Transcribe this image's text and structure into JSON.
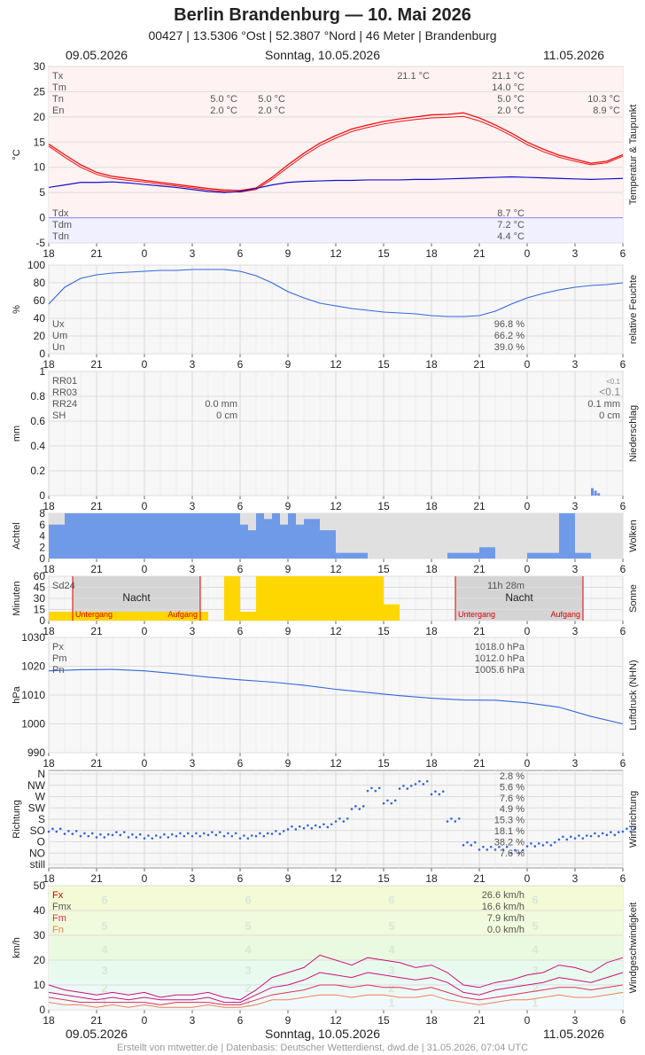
{
  "header": {
    "title": "Berlin Brandenburg  —  10. Mai 2026",
    "subtitle": "00427  |  13.5306 °Ost  |  52.3807 °Nord  |  46 Meter  |  Brandenburg"
  },
  "dates": {
    "left": "09.05.2026",
    "center": "Sonntag, 10.05.2026",
    "right": "11.05.2026"
  },
  "footer": "Erstellt von mtwetter.de | Datenbasis: Deutscher Wetterdienst, dwd.de | 31.05.2026, 07:04 UTC",
  "colors": {
    "temp": "#ee1111",
    "dew": "#1111cc",
    "humidity": "#3366dd",
    "cloud": "#6f9ae8",
    "sun": "#ffd700",
    "wind_max": "#cc1177",
    "wind_mean": "#dd3355",
    "wind_min": "#f08050",
    "night": "#cccccc"
  },
  "chart_data": [
    {
      "type": "line",
      "panel": "temperature",
      "ylabel": "°C",
      "side_label": "Temperatur & Taupunkt",
      "ylim": [
        -5,
        30
      ],
      "yticks": [
        -5,
        0,
        5,
        10,
        15,
        20,
        25,
        30
      ],
      "x_hours": [
        18,
        21,
        0,
        3,
        6,
        9,
        12,
        15,
        18,
        21,
        0,
        3,
        6
      ],
      "x": [
        18,
        19,
        20,
        21,
        22,
        23,
        24,
        25,
        26,
        27,
        28,
        29,
        30,
        31,
        32,
        33,
        34,
        35,
        36,
        37,
        38,
        39,
        40,
        41,
        42,
        43,
        44,
        45,
        46,
        47,
        48,
        49,
        50,
        51,
        52,
        53,
        54
      ],
      "series": [
        {
          "name": "Tx",
          "values": [
            14.6,
            12.5,
            10.5,
            9.0,
            8.2,
            7.8,
            7.4,
            7.0,
            6.6,
            6.2,
            5.8,
            5.5,
            5.4,
            5.9,
            8.0,
            10.5,
            12.8,
            14.8,
            16.3,
            17.6,
            18.4,
            19.1,
            19.6,
            20.0,
            20.4,
            20.5,
            20.8,
            19.8,
            18.4,
            16.8,
            15.0,
            13.6,
            12.4,
            11.6,
            10.8,
            11.2,
            12.5
          ]
        },
        {
          "name": "Tm",
          "values": [
            14.2,
            12.0,
            10.0,
            8.6,
            7.8,
            7.4,
            7.1,
            6.7,
            6.3,
            5.9,
            5.5,
            5.2,
            5.1,
            5.6,
            7.6,
            10.0,
            12.3,
            14.3,
            15.8,
            17.1,
            17.9,
            18.6,
            19.1,
            19.5,
            19.8,
            19.9,
            20.1,
            19.2,
            17.9,
            16.3,
            14.5,
            13.1,
            12.0,
            11.2,
            10.5,
            10.9,
            12.2
          ]
        },
        {
          "name": "Td",
          "values": [
            6.0,
            6.5,
            7.0,
            7.0,
            7.1,
            6.9,
            6.6,
            6.3,
            6.0,
            5.6,
            5.2,
            5.0,
            5.2,
            5.8,
            6.5,
            7.0,
            7.2,
            7.3,
            7.4,
            7.4,
            7.5,
            7.5,
            7.5,
            7.6,
            7.6,
            7.7,
            7.8,
            7.9,
            8.0,
            8.1,
            8.0,
            7.9,
            7.8,
            7.7,
            7.6,
            7.7,
            7.8
          ]
        }
      ],
      "labels": [
        {
          "row": "Tx",
          "v1": "",
          "v2": "",
          "v3": "21.1 °C",
          "v4": "21.1 °C",
          "v5": ""
        },
        {
          "row": "Tm",
          "v1": "",
          "v2": "",
          "v3": "",
          "v4": "14.0 °C",
          "v5": ""
        },
        {
          "row": "Tn",
          "v1": "5.0 °C",
          "v2": "5.0 °C",
          "v3": "",
          "v4": "5.0 °C",
          "v5": "10.3 °C"
        },
        {
          "row": "En",
          "v1": "2.0 °C",
          "v2": "2.0 °C",
          "v3": "",
          "v4": "2.0 °C",
          "v5": "8.9 °C"
        }
      ],
      "dew_labels": [
        {
          "row": "Tdx",
          "value": "8.7 °C"
        },
        {
          "row": "Tdm",
          "value": "7.2 °C"
        },
        {
          "row": "Tdn",
          "value": "4.4 °C"
        }
      ]
    },
    {
      "type": "line",
      "panel": "humidity",
      "ylabel": "%",
      "side_label": "relative Feuchte",
      "ylim": [
        0,
        100
      ],
      "yticks": [
        0,
        20,
        40,
        60,
        80,
        100
      ],
      "x": [
        18,
        19,
        20,
        21,
        22,
        23,
        24,
        25,
        26,
        27,
        28,
        29,
        30,
        31,
        32,
        33,
        34,
        35,
        36,
        37,
        38,
        39,
        40,
        41,
        42,
        43,
        44,
        45,
        46,
        47,
        48,
        49,
        50,
        51,
        52,
        53,
        54
      ],
      "series": [
        {
          "name": "U",
          "values": [
            56,
            75,
            85,
            89,
            91,
            92,
            93,
            94,
            94,
            95,
            95,
            95,
            93,
            88,
            80,
            70,
            63,
            57,
            54,
            51,
            49,
            47,
            46,
            45,
            43,
            42,
            42,
            43,
            48,
            56,
            63,
            68,
            72,
            75,
            77,
            78,
            80
          ]
        }
      ],
      "labels": [
        {
          "row": "Ux",
          "value": "96.8 %"
        },
        {
          "row": "Um",
          "value": "66.2 %"
        },
        {
          "row": "Un",
          "value": "39.0 %"
        }
      ]
    },
    {
      "type": "bar",
      "panel": "precipitation",
      "ylabel": "mm",
      "side_label": "Niederschlag",
      "ylim": [
        0,
        1.0
      ],
      "yticks": [
        0.0,
        0.2,
        0.4,
        0.6,
        0.8,
        1.0
      ],
      "x": [
        52.0,
        52.2,
        52.4
      ],
      "values": [
        0.06,
        0.04,
        0.02
      ],
      "labels": [
        {
          "row": "RR01",
          "v1": "",
          "v2": "<0.1"
        },
        {
          "row": "RR03",
          "v1": "",
          "v2": "<0.1"
        },
        {
          "row": "RR24",
          "v1": "0.0 mm",
          "v2": "0.1 mm"
        },
        {
          "row": "SH",
          "v1": "0 cm",
          "v2": "0 cm"
        }
      ]
    },
    {
      "type": "bar",
      "panel": "clouds",
      "ylabel": "Achtel",
      "side_label": "Wolken",
      "ylim": [
        0,
        8
      ],
      "yticks": [
        0,
        2,
        4,
        6,
        8
      ],
      "x": [
        18,
        19,
        20,
        21,
        22,
        23,
        24,
        25,
        26,
        27,
        28,
        29,
        29.5,
        30,
        30.5,
        31,
        31.5,
        32,
        32.5,
        33,
        33.5,
        34,
        35,
        36,
        37,
        38,
        39,
        40,
        41,
        42,
        43,
        44,
        45,
        46,
        47,
        48,
        49,
        50,
        51,
        52,
        53,
        54
      ],
      "values": [
        6,
        8,
        8,
        8,
        8,
        8,
        8,
        8,
        8,
        8,
        8,
        8,
        8,
        6,
        5,
        8,
        7,
        8,
        6,
        8,
        6,
        7,
        5,
        1,
        1,
        0,
        0,
        0,
        0,
        0,
        1,
        1,
        2,
        0,
        0,
        1,
        1,
        8,
        1,
        0,
        0,
        1
      ]
    },
    {
      "type": "bar",
      "panel": "sunshine",
      "ylabel": "Minuten",
      "side_label": "Sonne",
      "ylim": [
        0,
        60
      ],
      "yticks": [
        0,
        15,
        30,
        45,
        60
      ],
      "x": [
        18,
        28,
        29,
        30,
        31,
        32,
        33,
        34,
        35,
        36,
        37,
        38,
        39,
        40
      ],
      "values": [
        12,
        0,
        60,
        12,
        60,
        60,
        60,
        60,
        60,
        60,
        60,
        60,
        22,
        0
      ],
      "labels": {
        "sd24_label": "Sd24",
        "sd24_value": "11h 28m",
        "night": "Nacht",
        "sunset": "Untergang",
        "sunrise": "Aufgang"
      }
    },
    {
      "type": "line",
      "panel": "pressure",
      "ylabel": "hPa",
      "side_label": "Luftdruck (NHN)",
      "ylim": [
        990,
        1030
      ],
      "yticks": [
        990,
        1000,
        1010,
        1020,
        1030
      ],
      "x": [
        18,
        20,
        22,
        24,
        26,
        28,
        30,
        32,
        34,
        36,
        38,
        40,
        42,
        44,
        46,
        48,
        50,
        52,
        54
      ],
      "series": [
        {
          "name": "P",
          "values": [
            1018.4,
            1018.8,
            1018.9,
            1018.4,
            1017.4,
            1016.2,
            1015.3,
            1014.5,
            1013.4,
            1012.0,
            1010.9,
            1009.8,
            1008.9,
            1008.3,
            1008.2,
            1007.3,
            1005.8,
            1002.6,
            1000.0
          ]
        }
      ],
      "labels": [
        {
          "row": "Px",
          "value": "1018.0 hPa"
        },
        {
          "row": "Pm",
          "value": "1012.0 hPa"
        },
        {
          "row": "Pn",
          "value": "1005.6 hPa"
        }
      ]
    },
    {
      "type": "scatter",
      "panel": "wind_direction",
      "ylabel": "Richtung",
      "side_label": "Windrichtung",
      "categories": [
        "still",
        "NO",
        "O",
        "SO",
        "S",
        "SW",
        "W",
        "NW",
        "N"
      ],
      "x": [
        18,
        19,
        20,
        21,
        22,
        23,
        24,
        25,
        26,
        27,
        28,
        29,
        30,
        31,
        32,
        33,
        34,
        35,
        36,
        37,
        38,
        39,
        40,
        41,
        42,
        43,
        44,
        45,
        46,
        47,
        48,
        49,
        50,
        51,
        52,
        53,
        54
      ],
      "values": [
        3.0,
        2.8,
        2.6,
        2.5,
        2.7,
        2.5,
        2.4,
        2.5,
        2.6,
        2.6,
        2.7,
        2.6,
        2.4,
        2.6,
        2.8,
        3.2,
        3.3,
        3.4,
        3.9,
        5.0,
        6.6,
        5.5,
        6.8,
        7.2,
        6.3,
        3.9,
        1.8,
        1.4,
        1.4,
        1.1,
        1.7,
        1.8,
        2.3,
        2.4,
        2.6,
        2.7,
        3.0
      ],
      "labels": [
        {
          "row": "N",
          "value": "2.8 %"
        },
        {
          "row": "NW",
          "value": "5.6 %"
        },
        {
          "row": "W",
          "value": "7.6 %"
        },
        {
          "row": "SW",
          "value": "4.9 %"
        },
        {
          "row": "S",
          "value": "15.3 %"
        },
        {
          "row": "SO",
          "value": "18.1 %"
        },
        {
          "row": "O",
          "value": "38.2 %"
        },
        {
          "row": "NO",
          "value": "7.6 %"
        }
      ]
    },
    {
      "type": "line",
      "panel": "wind_speed",
      "ylabel": "km/h",
      "side_label": "Windgeschwindigkeit",
      "ylim": [
        0,
        50
      ],
      "yticks": [
        0,
        10,
        20,
        30,
        40,
        50
      ],
      "x": [
        18,
        19,
        20,
        21,
        22,
        23,
        24,
        25,
        26,
        27,
        28,
        29,
        30,
        31,
        32,
        33,
        34,
        35,
        36,
        37,
        38,
        39,
        40,
        41,
        42,
        43,
        44,
        45,
        46,
        47,
        48,
        49,
        50,
        51,
        52,
        53,
        54
      ],
      "series": [
        {
          "name": "Fx",
          "values": [
            10,
            8,
            7,
            6,
            7,
            6,
            7,
            5,
            6,
            6,
            7,
            5,
            4,
            8,
            13,
            15,
            17,
            22,
            20,
            18,
            21,
            20,
            19,
            17,
            18,
            15,
            10,
            9,
            11,
            12,
            14,
            15,
            18,
            17,
            15,
            19,
            21
          ]
        },
        {
          "name": "Fmx",
          "values": [
            7,
            6,
            5,
            4,
            5,
            4,
            5,
            4,
            4,
            4,
            5,
            3,
            3,
            6,
            9,
            10,
            12,
            15,
            14,
            13,
            15,
            14,
            13,
            12,
            13,
            11,
            7,
            6,
            8,
            9,
            10,
            11,
            13,
            12,
            11,
            13,
            15
          ]
        },
        {
          "name": "Fm",
          "values": [
            5,
            4,
            3,
            3,
            3,
            3,
            3,
            2,
            3,
            3,
            3,
            2,
            2,
            4,
            6,
            7,
            8,
            10,
            10,
            9,
            10,
            9,
            9,
            8,
            9,
            7,
            5,
            4,
            5,
            6,
            7,
            8,
            9,
            9,
            8,
            9,
            10
          ]
        },
        {
          "name": "Fn",
          "values": [
            3,
            2,
            2,
            1,
            2,
            1,
            2,
            1,
            1,
            1,
            2,
            1,
            1,
            2,
            4,
            4,
            5,
            6,
            6,
            5,
            6,
            6,
            5,
            5,
            6,
            4,
            3,
            2,
            3,
            4,
            4,
            5,
            6,
            5,
            5,
            6,
            7
          ]
        }
      ],
      "bft_labels": [
        "1",
        "2",
        "3",
        "4",
        "5",
        "6"
      ],
      "labels": [
        {
          "row": "Fx",
          "value": "26.6 km/h"
        },
        {
          "row": "Fmx",
          "value": "16.6 km/h"
        },
        {
          "row": "Fm",
          "value": "7.9 km/h"
        },
        {
          "row": "Fn",
          "value": "0.0 km/h"
        }
      ]
    }
  ]
}
